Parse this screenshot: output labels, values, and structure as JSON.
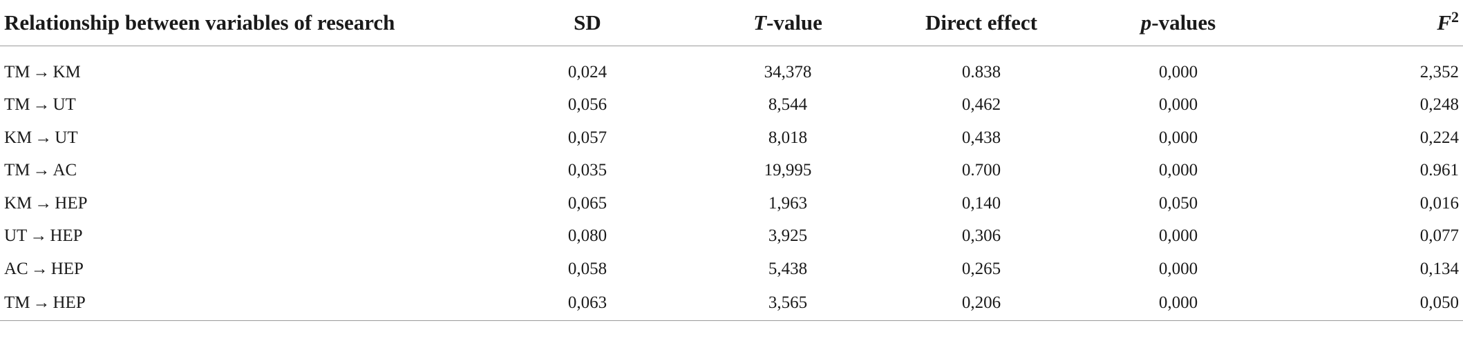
{
  "table": {
    "headers": {
      "relationship": "Relationship between variables of research",
      "sd": "SD",
      "t_value_italic": "T",
      "t_value_rest": "-value",
      "direct_effect": "Direct effect",
      "p_values_italic": "p",
      "p_values_rest": "-values",
      "f2_italic": "F",
      "f2_sup": "2"
    },
    "arrow": "→",
    "rows": [
      {
        "from": "TM",
        "to": "KM",
        "sd": "0,024",
        "t_value": "34,378",
        "direct_effect": "0.838",
        "p_value": "0,000",
        "f2": "2,352"
      },
      {
        "from": "TM",
        "to": "UT",
        "sd": "0,056",
        "t_value": "8,544",
        "direct_effect": "0,462",
        "p_value": "0,000",
        "f2": "0,248"
      },
      {
        "from": "KM",
        "to": "UT",
        "sd": "0,057",
        "t_value": "8,018",
        "direct_effect": "0,438",
        "p_value": "0,000",
        "f2": "0,224"
      },
      {
        "from": "TM",
        "to": "AC",
        "sd": "0,035",
        "t_value": "19,995",
        "direct_effect": "0.700",
        "p_value": "0,000",
        "f2": "0.961"
      },
      {
        "from": "KM",
        "to": "HEP",
        "sd": "0,065",
        "t_value": "1,963",
        "direct_effect": "0,140",
        "p_value": "0,050",
        "f2": "0,016"
      },
      {
        "from": "UT",
        "to": "HEP",
        "sd": "0,080",
        "t_value": "3,925",
        "direct_effect": "0,306",
        "p_value": "0,000",
        "f2": "0,077"
      },
      {
        "from": "AC",
        "to": "HEP",
        "sd": "0,058",
        "t_value": "5,438",
        "direct_effect": "0,265",
        "p_value": "0,000",
        "f2": "0,134"
      },
      {
        "from": "TM",
        "to": "HEP",
        "sd": "0,063",
        "t_value": "3,565",
        "direct_effect": "0,206",
        "p_value": "0,000",
        "f2": "0,050"
      }
    ]
  }
}
